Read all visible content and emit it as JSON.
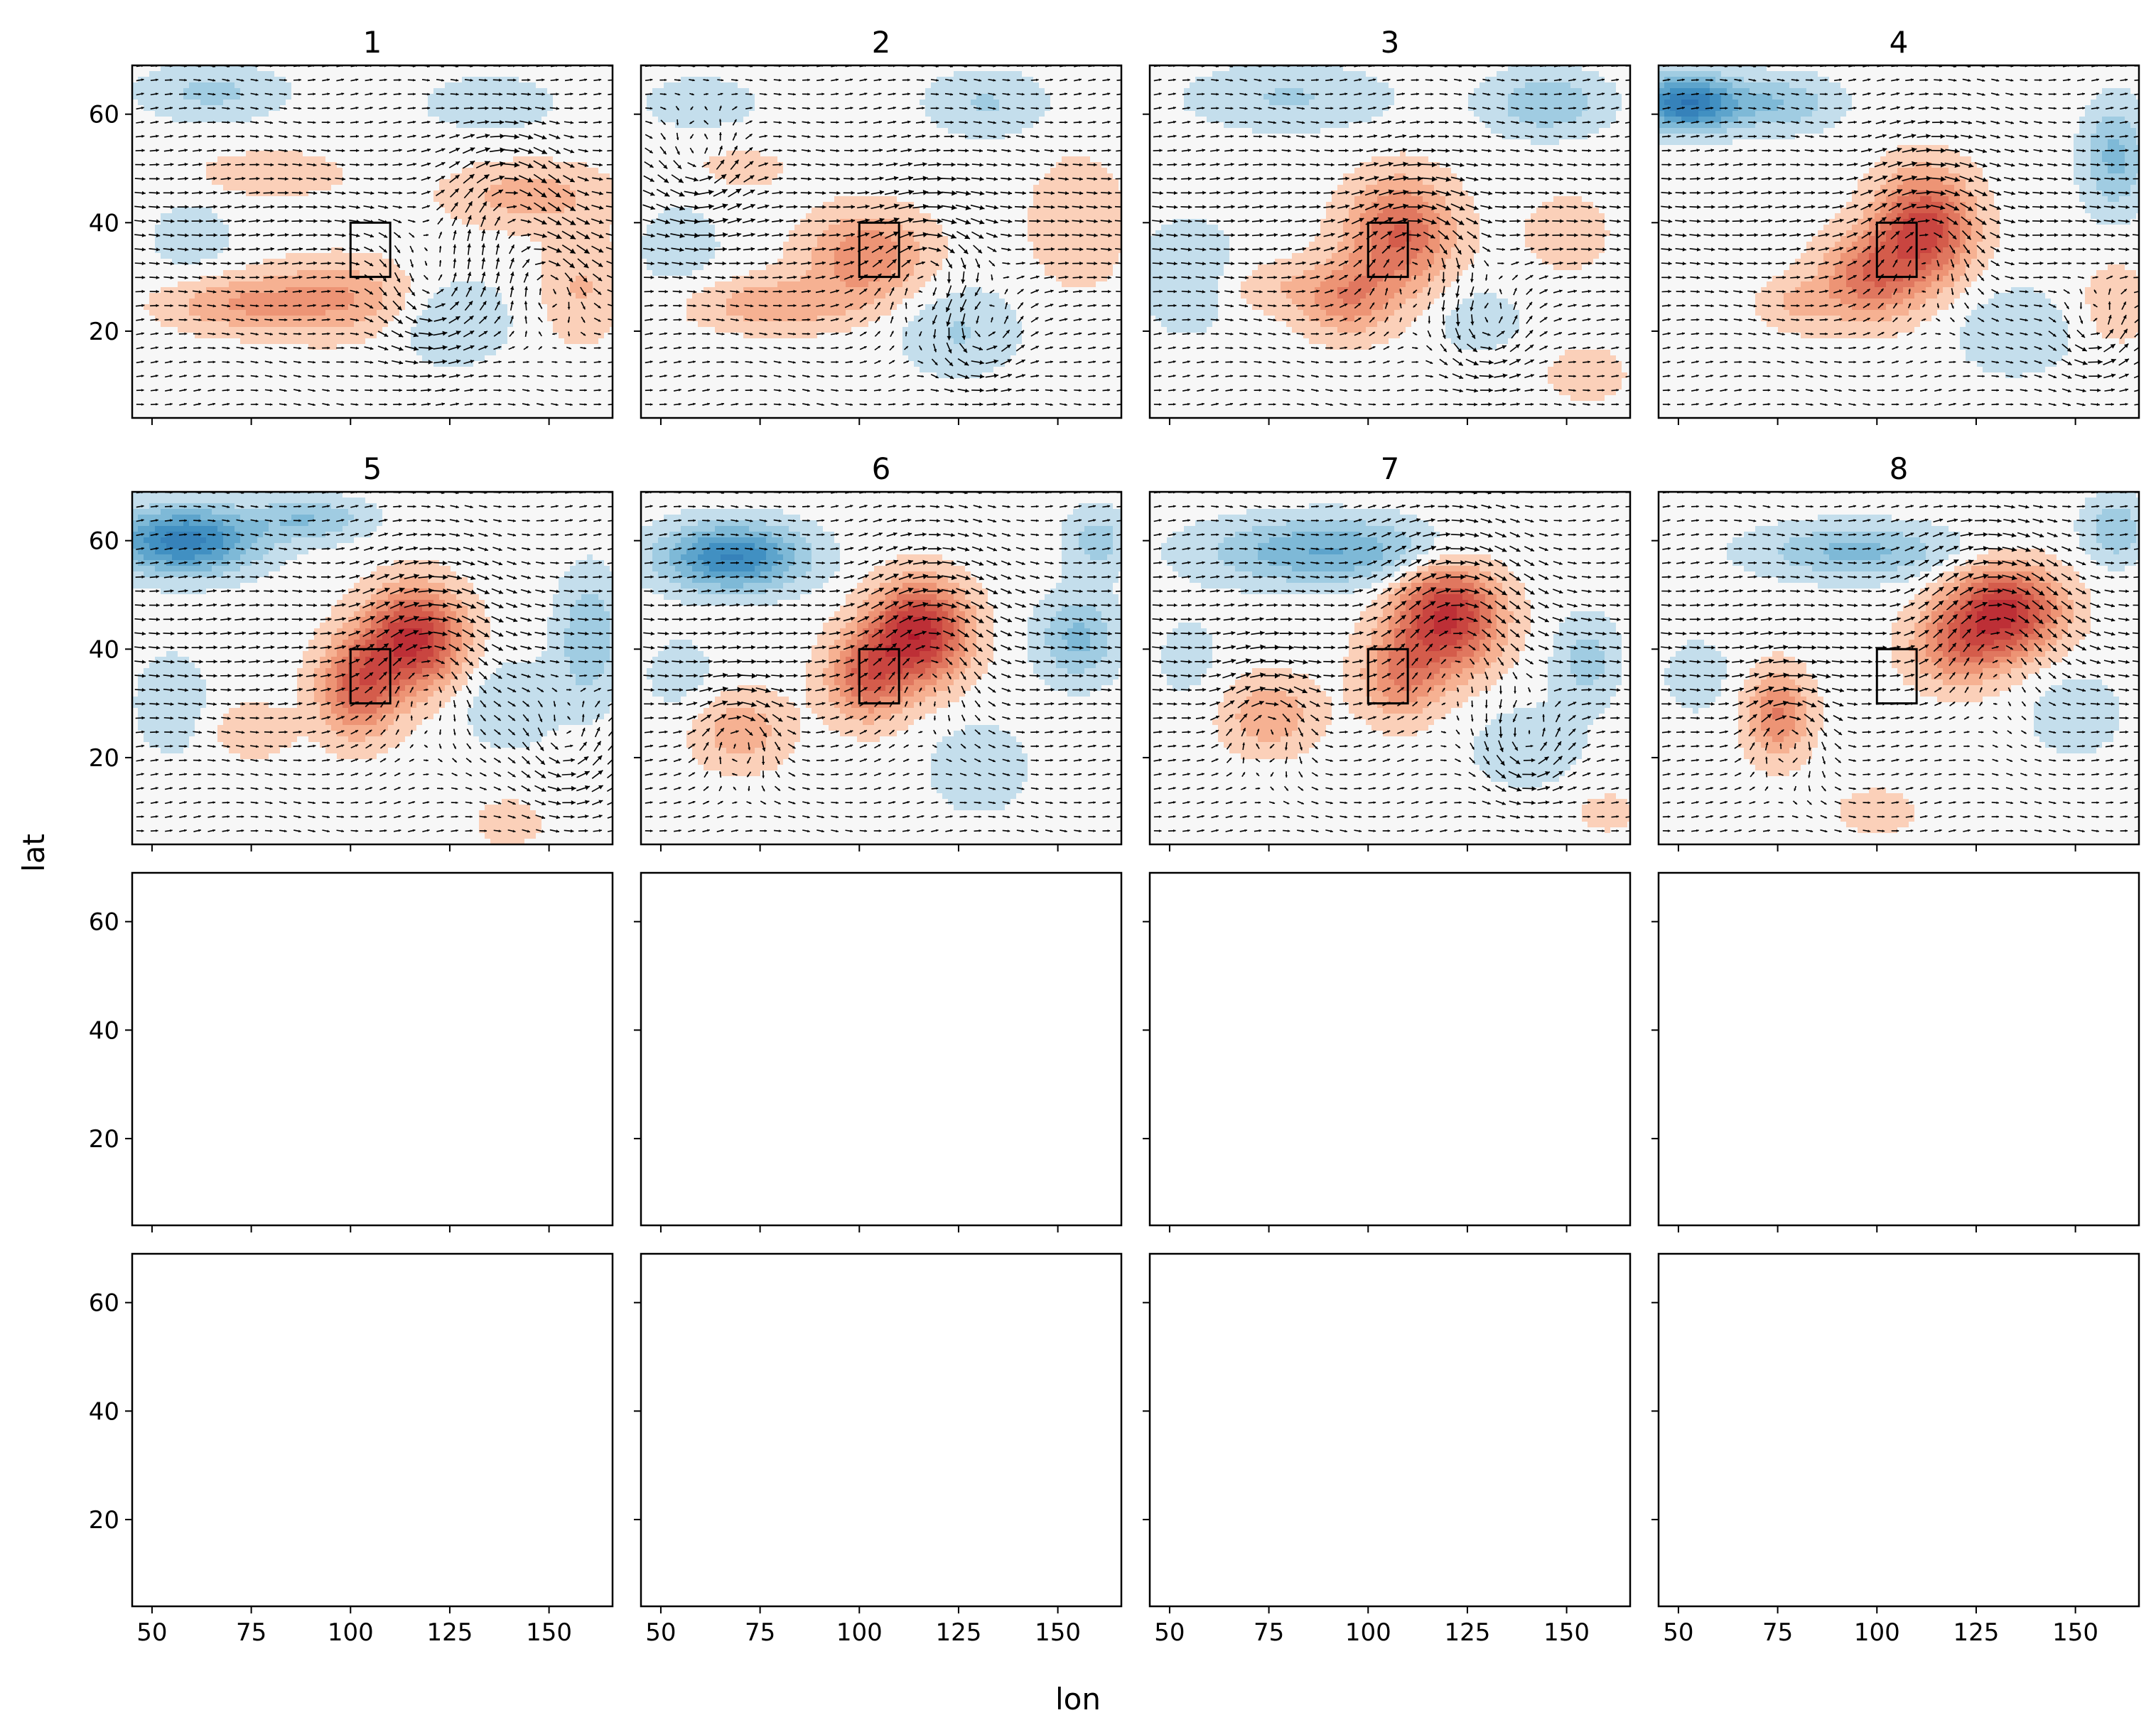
{
  "chart_data": {
    "type": "small-multiples-contour-quiver",
    "layout": {
      "rows": 4,
      "cols": 4,
      "sharex": true,
      "sharey": true
    },
    "xlabel": "lon",
    "ylabel": "lat",
    "xlim": [
      45,
      166
    ],
    "ylim": [
      4,
      69
    ],
    "xticks": [
      50,
      75,
      100,
      125,
      150
    ],
    "yticks": [
      20,
      40,
      60
    ],
    "colormap": "RdBu_r",
    "colors": {
      "neg_strong": "#2166ac",
      "neg": "#92c5de",
      "neutral": "#f7f7f7",
      "pos": "#f4a582",
      "pos_strong": "#b2182b",
      "arrow": "#000000"
    },
    "region_box": {
      "lon": [
        100,
        110
      ],
      "lat": [
        30,
        40
      ]
    },
    "panels": [
      {
        "title": "1",
        "filled": true,
        "features": [
          {
            "lon": 70,
            "lat": 25,
            "rx": 18,
            "ry": 5,
            "v": 0.28
          },
          {
            "lon": 97,
            "lat": 26,
            "rx": 20,
            "ry": 7,
            "v": 0.32
          },
          {
            "lon": 80,
            "lat": 49,
            "rx": 18,
            "ry": 4,
            "v": 0.18
          },
          {
            "lon": 145,
            "lat": 45,
            "rx": 20,
            "ry": 6,
            "v": 0.25
          },
          {
            "lon": 158,
            "lat": 28,
            "rx": 10,
            "ry": 10,
            "v": 0.2
          },
          {
            "lon": 65,
            "lat": 64,
            "rx": 18,
            "ry": 5,
            "v": -0.22
          },
          {
            "lon": 125,
            "lat": 22,
            "rx": 15,
            "ry": 8,
            "v": -0.2
          },
          {
            "lon": 60,
            "lat": 37,
            "rx": 12,
            "ry": 8,
            "v": -0.12
          },
          {
            "lon": 135,
            "lat": 62,
            "rx": 20,
            "ry": 6,
            "v": -0.12
          }
        ],
        "vortices": [
          {
            "lon": 120,
            "lat": 26,
            "r": 12,
            "s": -1
          },
          {
            "lon": 150,
            "lat": 30,
            "r": 10,
            "s": 1
          },
          {
            "lon": 140,
            "lat": 45,
            "r": 12,
            "s": 1
          }
        ]
      },
      {
        "title": "2",
        "filled": true,
        "features": [
          {
            "lon": 102,
            "lat": 34,
            "rx": 15,
            "ry": 8,
            "v": 0.42
          },
          {
            "lon": 78,
            "lat": 25,
            "rx": 22,
            "ry": 5,
            "v": 0.28
          },
          {
            "lon": 155,
            "lat": 40,
            "rx": 12,
            "ry": 12,
            "v": 0.18
          },
          {
            "lon": 70,
            "lat": 50,
            "rx": 15,
            "ry": 5,
            "v": 0.1
          },
          {
            "lon": 132,
            "lat": 62,
            "rx": 15,
            "ry": 6,
            "v": -0.2
          },
          {
            "lon": 125,
            "lat": 20,
            "rx": 15,
            "ry": 8,
            "v": -0.2
          },
          {
            "lon": 60,
            "lat": 62,
            "rx": 15,
            "ry": 5,
            "v": -0.15
          },
          {
            "lon": 55,
            "lat": 35,
            "rx": 12,
            "ry": 10,
            "v": -0.12
          }
        ],
        "vortices": [
          {
            "lon": 118,
            "lat": 33,
            "r": 13,
            "s": 1
          },
          {
            "lon": 130,
            "lat": 20,
            "r": 10,
            "s": -1
          },
          {
            "lon": 60,
            "lat": 50,
            "r": 10,
            "s": -1
          }
        ]
      },
      {
        "title": "3",
        "filled": true,
        "features": [
          {
            "lon": 108,
            "lat": 38,
            "rx": 13,
            "ry": 10,
            "v": 0.58
          },
          {
            "lon": 95,
            "lat": 26,
            "rx": 12,
            "ry": 7,
            "v": 0.38
          },
          {
            "lon": 75,
            "lat": 28,
            "rx": 15,
            "ry": 5,
            "v": 0.15
          },
          {
            "lon": 150,
            "lat": 38,
            "rx": 15,
            "ry": 10,
            "v": 0.1
          },
          {
            "lon": 145,
            "lat": 62,
            "rx": 15,
            "ry": 6,
            "v": -0.3
          },
          {
            "lon": 80,
            "lat": 63,
            "rx": 25,
            "ry": 6,
            "v": -0.2
          },
          {
            "lon": 55,
            "lat": 30,
            "rx": 12,
            "ry": 10,
            "v": -0.2
          },
          {
            "lon": 128,
            "lat": 22,
            "rx": 12,
            "ry": 6,
            "v": -0.15
          },
          {
            "lon": 155,
            "lat": 12,
            "rx": 12,
            "ry": 6,
            "v": 0.12
          }
        ],
        "vortices": [
          {
            "lon": 112,
            "lat": 37,
            "r": 13,
            "s": 1
          },
          {
            "lon": 130,
            "lat": 20,
            "r": 10,
            "s": -1
          }
        ]
      },
      {
        "title": "4",
        "filled": true,
        "features": [
          {
            "lon": 112,
            "lat": 39,
            "rx": 12,
            "ry": 10,
            "v": 0.75
          },
          {
            "lon": 98,
            "lat": 30,
            "rx": 12,
            "ry": 8,
            "v": 0.5
          },
          {
            "lon": 80,
            "lat": 25,
            "rx": 10,
            "ry": 5,
            "v": 0.2
          },
          {
            "lon": 52,
            "lat": 62,
            "rx": 12,
            "ry": 5,
            "v": -0.8
          },
          {
            "lon": 75,
            "lat": 62,
            "rx": 15,
            "ry": 5,
            "v": -0.3
          },
          {
            "lon": 160,
            "lat": 52,
            "rx": 8,
            "ry": 10,
            "v": -0.35
          },
          {
            "lon": 135,
            "lat": 20,
            "rx": 15,
            "ry": 8,
            "v": -0.18
          },
          {
            "lon": 160,
            "lat": 25,
            "rx": 10,
            "ry": 8,
            "v": 0.15
          }
        ],
        "vortices": [
          {
            "lon": 113,
            "lat": 40,
            "r": 14,
            "s": 1
          },
          {
            "lon": 155,
            "lat": 20,
            "r": 8,
            "s": -1
          }
        ]
      },
      {
        "title": "5",
        "filled": true,
        "features": [
          {
            "lon": 116,
            "lat": 42,
            "rx": 12,
            "ry": 9,
            "v": 0.85
          },
          {
            "lon": 102,
            "lat": 33,
            "rx": 10,
            "ry": 9,
            "v": 0.6
          },
          {
            "lon": 75,
            "lat": 25,
            "rx": 10,
            "ry": 5,
            "v": 0.18
          },
          {
            "lon": 58,
            "lat": 60,
            "rx": 18,
            "ry": 6,
            "v": -0.75
          },
          {
            "lon": 90,
            "lat": 64,
            "rx": 15,
            "ry": 4,
            "v": -0.3
          },
          {
            "lon": 160,
            "lat": 42,
            "rx": 8,
            "ry": 12,
            "v": -0.3
          },
          {
            "lon": 140,
            "lat": 30,
            "rx": 12,
            "ry": 8,
            "v": -0.18
          },
          {
            "lon": 55,
            "lat": 30,
            "rx": 10,
            "ry": 10,
            "v": -0.15
          },
          {
            "lon": 140,
            "lat": 8,
            "rx": 10,
            "ry": 5,
            "v": 0.12
          }
        ],
        "vortices": [
          {
            "lon": 120,
            "lat": 40,
            "r": 15,
            "s": 1
          },
          {
            "lon": 155,
            "lat": 22,
            "r": 10,
            "s": -1
          }
        ]
      },
      {
        "title": "6",
        "filled": true,
        "features": [
          {
            "lon": 115,
            "lat": 43,
            "rx": 12,
            "ry": 9,
            "v": 0.9
          },
          {
            "lon": 102,
            "lat": 35,
            "rx": 10,
            "ry": 8,
            "v": 0.55
          },
          {
            "lon": 70,
            "lat": 25,
            "rx": 12,
            "ry": 7,
            "v": 0.28
          },
          {
            "lon": 68,
            "lat": 57,
            "rx": 18,
            "ry": 6,
            "v": -0.7
          },
          {
            "lon": 155,
            "lat": 42,
            "rx": 10,
            "ry": 8,
            "v": -0.35
          },
          {
            "lon": 160,
            "lat": 60,
            "rx": 8,
            "ry": 6,
            "v": -0.25
          },
          {
            "lon": 130,
            "lat": 18,
            "rx": 12,
            "ry": 8,
            "v": -0.18
          },
          {
            "lon": 55,
            "lat": 35,
            "rx": 10,
            "ry": 8,
            "v": -0.12
          }
        ],
        "vortices": [
          {
            "lon": 118,
            "lat": 42,
            "r": 15,
            "s": 1
          },
          {
            "lon": 70,
            "lat": 25,
            "r": 9,
            "s": 1
          }
        ]
      },
      {
        "title": "7",
        "filled": true,
        "features": [
          {
            "lon": 120,
            "lat": 46,
            "rx": 13,
            "ry": 10,
            "v": 0.85
          },
          {
            "lon": 108,
            "lat": 35,
            "rx": 10,
            "ry": 8,
            "v": 0.4
          },
          {
            "lon": 75,
            "lat": 28,
            "rx": 12,
            "ry": 7,
            "v": 0.3
          },
          {
            "lon": 90,
            "lat": 58,
            "rx": 30,
            "ry": 6,
            "v": -0.45
          },
          {
            "lon": 155,
            "lat": 38,
            "rx": 8,
            "ry": 8,
            "v": -0.25
          },
          {
            "lon": 140,
            "lat": 22,
            "rx": 15,
            "ry": 8,
            "v": -0.15
          },
          {
            "lon": 55,
            "lat": 38,
            "rx": 10,
            "ry": 10,
            "v": -0.1
          },
          {
            "lon": 160,
            "lat": 10,
            "rx": 10,
            "ry": 5,
            "v": 0.1
          }
        ],
        "vortices": [
          {
            "lon": 122,
            "lat": 45,
            "r": 16,
            "s": 1
          },
          {
            "lon": 75,
            "lat": 28,
            "r": 10,
            "s": 1
          },
          {
            "lon": 140,
            "lat": 22,
            "r": 9,
            "s": -1
          }
        ]
      },
      {
        "title": "8",
        "filled": true,
        "features": [
          {
            "lon": 132,
            "lat": 47,
            "rx": 14,
            "ry": 8,
            "v": 0.85
          },
          {
            "lon": 120,
            "lat": 40,
            "rx": 12,
            "ry": 7,
            "v": 0.4
          },
          {
            "lon": 75,
            "lat": 28,
            "rx": 8,
            "ry": 8,
            "v": 0.45
          },
          {
            "lon": 95,
            "lat": 58,
            "rx": 25,
            "ry": 5,
            "v": -0.35
          },
          {
            "lon": 160,
            "lat": 62,
            "rx": 8,
            "ry": 6,
            "v": -0.3
          },
          {
            "lon": 150,
            "lat": 28,
            "rx": 12,
            "ry": 8,
            "v": -0.15
          },
          {
            "lon": 55,
            "lat": 35,
            "rx": 10,
            "ry": 8,
            "v": -0.12
          },
          {
            "lon": 100,
            "lat": 10,
            "rx": 12,
            "ry": 5,
            "v": 0.12
          }
        ],
        "vortices": [
          {
            "lon": 130,
            "lat": 45,
            "r": 16,
            "s": 1
          },
          {
            "lon": 78,
            "lat": 26,
            "r": 10,
            "s": 1
          }
        ]
      },
      {
        "title": "",
        "filled": false
      },
      {
        "title": "",
        "filled": false
      },
      {
        "title": "",
        "filled": false
      },
      {
        "title": "",
        "filled": false
      },
      {
        "title": "",
        "filled": false
      },
      {
        "title": "",
        "filled": false
      },
      {
        "title": "",
        "filled": false
      },
      {
        "title": "",
        "filled": false
      }
    ]
  }
}
